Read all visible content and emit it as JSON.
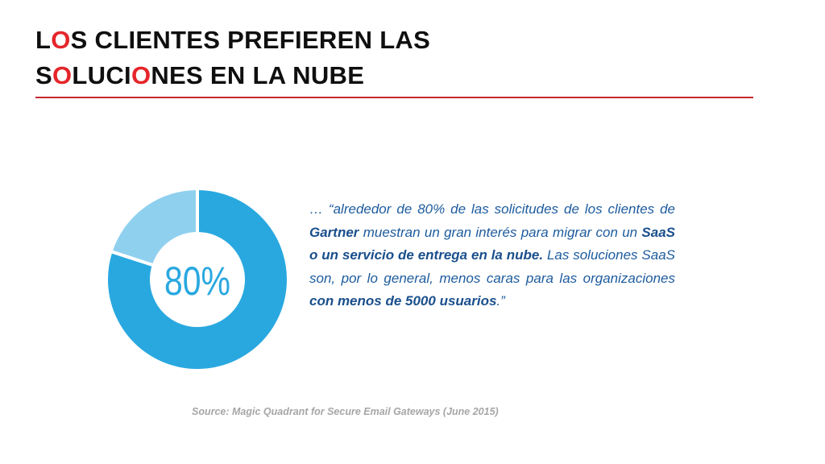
{
  "title": {
    "line1": [
      {
        "text": "L",
        "red": false
      },
      {
        "text": "O",
        "red": true
      },
      {
        "text": "S CLIENTES PREFIEREN LAS",
        "red": false
      }
    ],
    "line2": [
      {
        "text": "S",
        "red": false
      },
      {
        "text": "O",
        "red": true
      },
      {
        "text": "LUCI",
        "red": false
      },
      {
        "text": "O",
        "red": true
      },
      {
        "text": "NES EN LA NUBE",
        "red": false
      }
    ]
  },
  "colors": {
    "accent_red": "#e4262a",
    "rule": "#c8282d",
    "donut_main": "#29a8e0",
    "donut_rest": "#8fd0ef",
    "quote_text": "#1d5b9e",
    "source_text": "#a6a6a6"
  },
  "chart_data": {
    "type": "pie",
    "style": "donut",
    "center_label": "80%",
    "slices": [
      {
        "value": 80,
        "color": "#29a8e0"
      },
      {
        "value": 20,
        "color": "#8fd0ef"
      }
    ]
  },
  "quote": {
    "segments": [
      {
        "text": "… “alrededor de 80% de las solicitudes de los clientes de ",
        "bold": false
      },
      {
        "text": "Gartner",
        "bold": true
      },
      {
        "text": " muestran un gran interés para migrar con un ",
        "bold": false
      },
      {
        "text": "SaaS o un servicio de entrega en la nube.",
        "bold": true
      },
      {
        "text": " Las soluciones SaaS son, por lo general, menos caras para las organizaciones ",
        "bold": false
      },
      {
        "text": "con menos de 5000 usuarios",
        "bold": true
      },
      {
        "text": ".”",
        "bold": false
      }
    ]
  },
  "source": "Source: Magic Quadrant for Secure Email Gateways (June 2015)"
}
